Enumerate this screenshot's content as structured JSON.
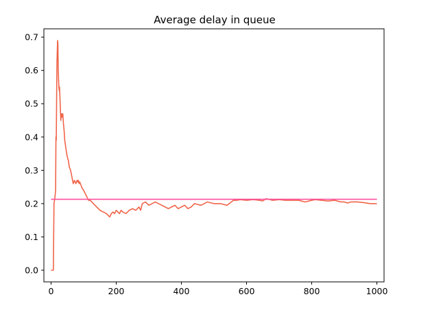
{
  "chart_data": {
    "type": "line",
    "title": "Average delay in queue",
    "xlabel": "",
    "ylabel": "",
    "xlim": [
      -22,
      1022
    ],
    "ylim": [
      -0.035,
      0.725
    ],
    "xticks": [
      0,
      200,
      400,
      600,
      800,
      1000
    ],
    "yticks": [
      0.0,
      0.1,
      0.2,
      0.3,
      0.4,
      0.5,
      0.6,
      0.7
    ],
    "xtick_labels": [
      "0",
      "200",
      "400",
      "600",
      "800",
      "1000"
    ],
    "ytick_labels": [
      "0.0",
      "0.1",
      "0.2",
      "0.3",
      "0.4",
      "0.5",
      "0.6",
      "0.7"
    ],
    "grid": false,
    "legend": "none",
    "series": [
      {
        "color": "#f06449",
        "x": [
          0,
          5,
          7,
          9,
          12,
          14,
          15,
          16,
          18,
          20,
          21,
          22,
          24,
          25,
          26,
          28,
          30,
          32,
          34,
          36,
          38,
          40,
          42,
          45,
          48,
          50,
          53,
          56,
          60,
          64,
          68,
          72,
          76,
          80,
          82,
          84,
          86,
          88,
          90,
          92,
          94,
          96,
          100,
          105,
          110,
          115,
          120,
          125,
          130,
          140,
          150,
          160,
          170,
          180,
          185,
          190,
          195,
          200,
          205,
          210,
          215,
          220,
          230,
          240,
          250,
          260,
          270,
          275,
          280,
          290,
          300,
          310,
          320,
          330,
          340,
          350,
          360,
          370,
          380,
          390,
          400,
          410,
          420,
          430,
          440,
          460,
          480,
          500,
          520,
          540,
          560,
          570,
          580,
          600,
          620,
          640,
          650,
          660,
          680,
          700,
          720,
          740,
          760,
          780,
          800,
          810,
          830,
          850,
          870,
          890,
          900,
          910,
          920,
          940,
          960,
          980,
          1000
        ],
        "y": [
          0.0,
          0.0,
          0.0,
          0.2,
          0.22,
          0.24,
          0.4,
          0.39,
          0.62,
          0.69,
          0.68,
          0.6,
          0.55,
          0.54,
          0.55,
          0.5,
          0.45,
          0.47,
          0.46,
          0.47,
          0.44,
          0.42,
          0.39,
          0.37,
          0.35,
          0.34,
          0.33,
          0.31,
          0.3,
          0.28,
          0.26,
          0.27,
          0.26,
          0.27,
          0.265,
          0.27,
          0.26,
          0.265,
          0.26,
          0.255,
          0.25,
          0.245,
          0.24,
          0.23,
          0.22,
          0.21,
          0.21,
          0.205,
          0.2,
          0.19,
          0.18,
          0.175,
          0.17,
          0.16,
          0.17,
          0.175,
          0.17,
          0.18,
          0.175,
          0.17,
          0.18,
          0.175,
          0.17,
          0.18,
          0.185,
          0.18,
          0.19,
          0.18,
          0.2,
          0.205,
          0.195,
          0.2,
          0.205,
          0.2,
          0.195,
          0.19,
          0.185,
          0.19,
          0.195,
          0.185,
          0.19,
          0.195,
          0.185,
          0.19,
          0.2,
          0.195,
          0.205,
          0.2,
          0.2,
          0.195,
          0.21,
          0.21,
          0.212,
          0.21,
          0.212,
          0.21,
          0.208,
          0.215,
          0.21,
          0.212,
          0.21,
          0.21,
          0.21,
          0.205,
          0.21,
          0.212,
          0.21,
          0.208,
          0.21,
          0.205,
          0.205,
          0.202,
          0.205,
          0.205,
          0.203,
          0.2,
          0.2
        ]
      },
      {
        "color": "#ff4f9b",
        "x": [
          0,
          1000
        ],
        "y": [
          0.213,
          0.213
        ]
      }
    ]
  }
}
